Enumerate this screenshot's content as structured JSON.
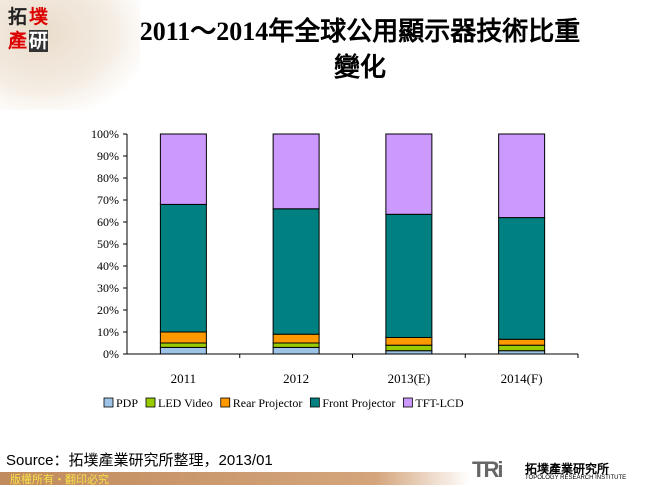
{
  "title": "2011～2014年全球公用顯示器技術比重變化",
  "title_line1": "2011～2014年全球公用顯示器技術比重",
  "title_line2": "變化",
  "logo": {
    "chars": [
      "拓",
      "墣",
      "產",
      "研"
    ]
  },
  "source": "Source：拓墣產業研究所整理，2013/01",
  "footer": "版權所有・翻印必究",
  "brand": {
    "mark": "TRi",
    "name_cn": "拓墣產業研究所",
    "name_en": "TOPOLOGY RESEARCH INSTITUTE"
  },
  "chart_data": {
    "type": "bar",
    "stacked": true,
    "percent": true,
    "categories": [
      "2011",
      "2012",
      "2013(E)",
      "2014(F)"
    ],
    "yticks": [
      "0%",
      "10%",
      "20%",
      "30%",
      "40%",
      "50%",
      "60%",
      "70%",
      "80%",
      "90%",
      "100%"
    ],
    "ylim": [
      0,
      100
    ],
    "legend_position": "bottom",
    "series": [
      {
        "name": "PDP",
        "color": "#9dc3e6",
        "values": [
          3,
          3,
          1.5,
          1.5
        ]
      },
      {
        "name": "LED Video",
        "color": "#99cc00",
        "values": [
          2,
          2,
          2.5,
          2.5
        ]
      },
      {
        "name": "Rear Projector",
        "color": "#ff9900",
        "values": [
          5,
          4,
          3.5,
          2.7
        ]
      },
      {
        "name": "Front Projector",
        "color": "#008080",
        "values": [
          58,
          57,
          56,
          55.3
        ]
      },
      {
        "name": "TFT-LCD",
        "color": "#cc99ff",
        "values": [
          32,
          34,
          36.5,
          38
        ]
      }
    ]
  }
}
